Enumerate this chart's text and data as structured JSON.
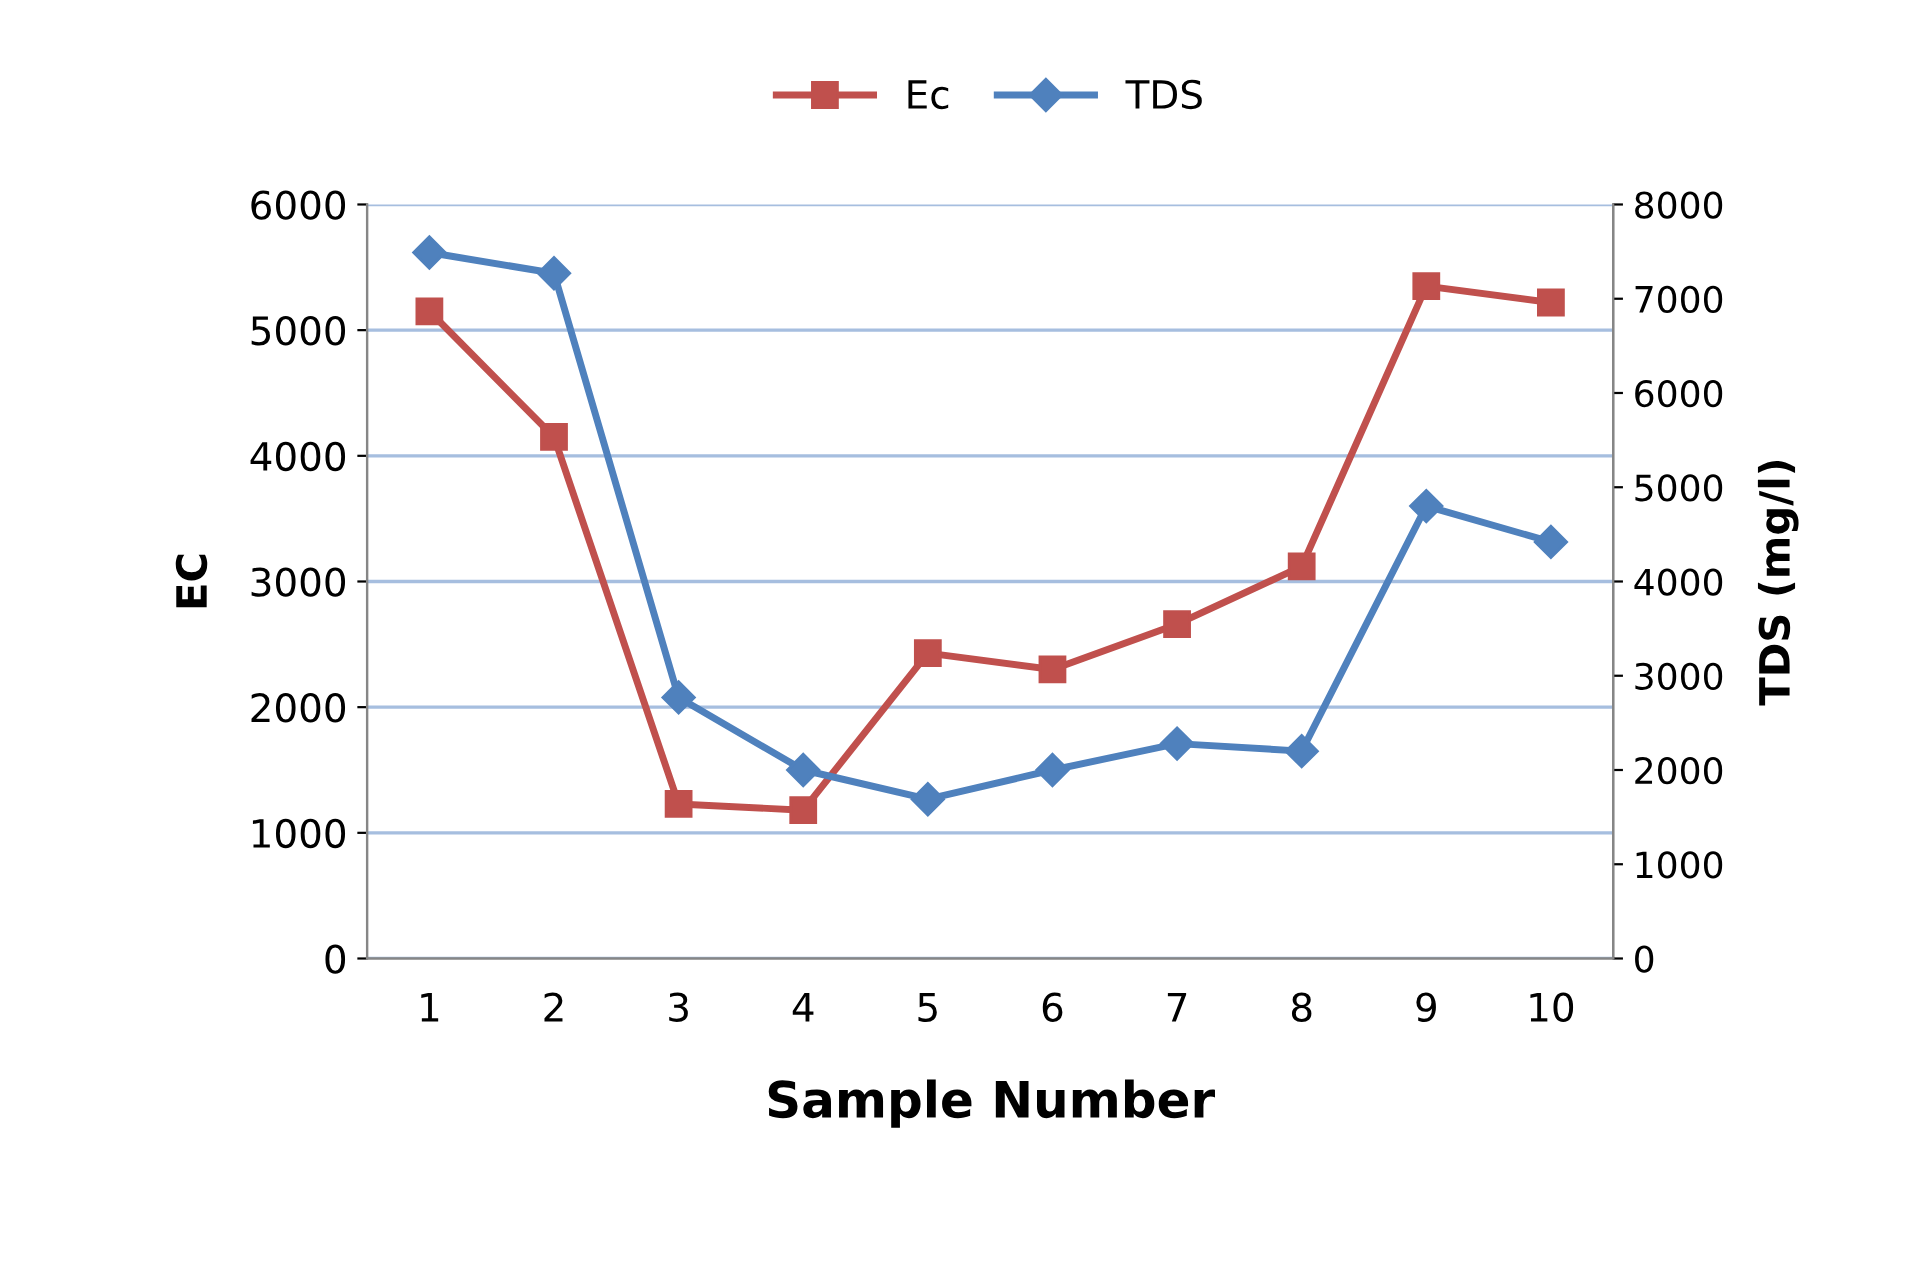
{
  "chart_data": {
    "type": "line",
    "xlabel": "Sample Number",
    "ylabel": "EC",
    "y2label": "TDS (mg/l)",
    "categories": [
      "1",
      "2",
      "3",
      "4",
      "5",
      "6",
      "7",
      "8",
      "9",
      "10"
    ],
    "series": [
      {
        "name": "Ec",
        "color": "#c0504d",
        "marker": "square",
        "values": [
          5150,
          4150,
          1230,
          1180,
          2430,
          2300,
          2660,
          3120,
          5350,
          5220
        ]
      },
      {
        "name": "TDS",
        "color": "#4f81bd",
        "marker": "diamond",
        "axis": "y2",
        "values": [
          7490,
          7270,
          2770,
          2000,
          1690,
          2000,
          2280,
          2200,
          4800,
          4420
        ]
      }
    ],
    "ylim": [
      0,
      6000
    ],
    "yticks": [
      0,
      1000,
      2000,
      3000,
      4000,
      5000,
      6000
    ],
    "y2lim": [
      0,
      8000
    ],
    "y2ticks": [
      0,
      1000,
      2000,
      3000,
      4000,
      5000,
      6000,
      7000,
      8000
    ],
    "grid": "y",
    "legend": "top",
    "line_style": "solid"
  }
}
